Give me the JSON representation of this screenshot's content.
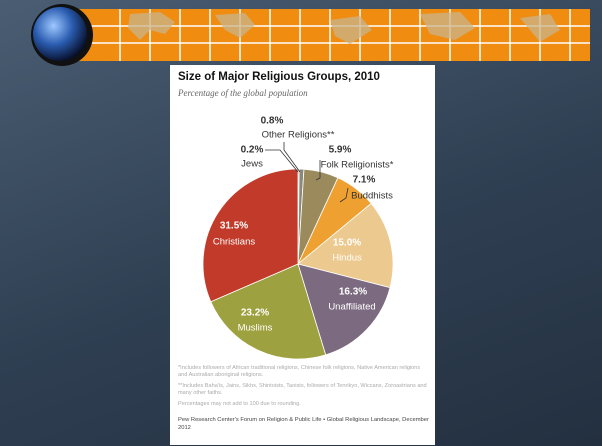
{
  "chart_data": {
    "type": "pie",
    "title": "Size of Major Religious Groups, 2010",
    "subtitle": "Percentage of the global population",
    "categories": [
      "Jews",
      "Other Religions**",
      "Folk Religionists*",
      "Buddhists",
      "Hindus",
      "Unaffiliated",
      "Muslims",
      "Christians"
    ],
    "values": [
      0.2,
      0.8,
      5.9,
      7.1,
      15.0,
      16.3,
      23.2,
      31.5
    ],
    "value_labels": [
      "0.2%",
      "0.8%",
      "5.9%",
      "7.1%",
      "15.0%",
      "16.3%",
      "23.2%",
      "31.5%"
    ],
    "colors": [
      "#4e4e42",
      "#8a8a7c",
      "#9b8a5c",
      "#eea030",
      "#ecc98e",
      "#7c6b80",
      "#9ea13f",
      "#c23b2a"
    ],
    "notes": [
      "*Includes followers of African traditional religions, Chinese folk religions, Native American religions and Australian aboriginal religions.",
      "**Includes Baha'is, Jains, Sikhs, Shintoists, Taoists, followers of Tenrikyo, Wiccans, Zoroastrians and many other faiths.",
      "Percentages may not add to 100 due to rounding."
    ],
    "source": "Pew Research Center's Forum on Religion & Public Life • Global Religious Landscape, December 2012"
  }
}
